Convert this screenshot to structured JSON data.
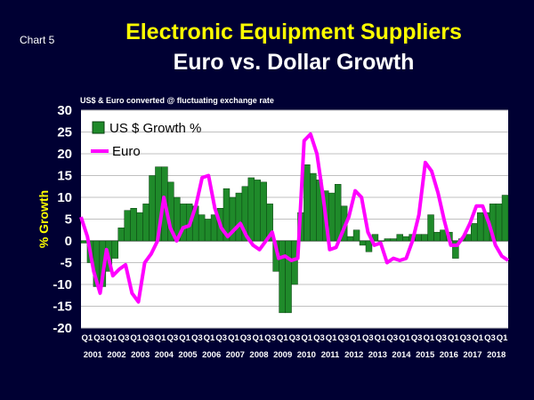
{
  "header": {
    "chart_label": "Chart 5",
    "title": "Electronic Equipment Suppliers",
    "subtitle": "Euro vs. Dollar Growth",
    "note": "US$ & Euro converted @ fluctuating exchange rate"
  },
  "colors": {
    "background": "#000033",
    "plot_background": "#ffffff",
    "bar": "#1f8a2a",
    "euro_line": "#ff00ff",
    "title": "#ffff00",
    "text": "#ffffff"
  },
  "chart_data": {
    "type": "bar",
    "title": "Electronic Equipment Suppliers",
    "subtitle": "Euro vs. Dollar Growth",
    "ylabel": "% Growth",
    "xlabel": "",
    "ylim": [
      -20,
      30
    ],
    "yticks": [
      30,
      25,
      20,
      15,
      10,
      5,
      0,
      -5,
      -10,
      -15,
      -20
    ],
    "grid": true,
    "legend_position": "top-left",
    "quarter_tick_labels": [
      "Q1",
      "Q3",
      "Q1",
      "Q3",
      "Q1",
      "Q3",
      "Q1",
      "Q3",
      "Q1",
      "Q3",
      "Q1",
      "Q3",
      "Q1",
      "Q3",
      "Q1",
      "Q3",
      "Q1",
      "Q3",
      "Q1",
      "Q3",
      "Q1",
      "Q3",
      "Q1",
      "Q3",
      "Q1",
      "Q3",
      "Q1",
      "Q3",
      "Q1",
      "Q3",
      "Q1",
      "Q3",
      "Q1",
      "Q3",
      "Q1"
    ],
    "years": [
      "2001",
      "2002",
      "2003",
      "2004",
      "2005",
      "2006",
      "2007",
      "2008",
      "2009",
      "2010",
      "2011",
      "2012",
      "2013",
      "2014",
      "2015",
      "2016",
      "2017",
      "2018"
    ],
    "series": [
      {
        "name": "US $ Growth %",
        "type": "bar",
        "values": [
          -0.5,
          -5,
          -10.5,
          -10.5,
          -7,
          -4,
          3,
          7,
          7.5,
          6.5,
          8.5,
          15,
          17,
          17,
          13.5,
          10,
          8.5,
          8.5,
          8,
          6,
          5,
          6,
          7.5,
          12,
          10,
          11,
          12.5,
          14.5,
          14,
          13.5,
          8.5,
          -7,
          -16.5,
          -16.5,
          -10,
          6.5,
          17.5,
          15.5,
          14,
          11.5,
          11,
          13,
          8,
          1,
          2.5,
          -1,
          -2.5,
          1.5,
          0,
          0.5,
          0.5,
          1.5,
          1,
          1.5,
          1.5,
          1.5,
          6,
          2,
          2.5,
          2,
          -4,
          0.5,
          1.5,
          4,
          6.5,
          6.5,
          8.5,
          8.5,
          10.5
        ]
      },
      {
        "name": "Euro",
        "type": "line",
        "values": [
          5.5,
          1,
          -7,
          -12,
          -2,
          -8,
          -6.5,
          -5.5,
          -12,
          -14,
          -5,
          -3,
          0,
          10,
          3,
          0,
          3,
          3.5,
          8,
          14.5,
          15,
          7.5,
          3,
          1,
          2.5,
          4,
          1,
          -1,
          -2,
          0,
          2,
          -4,
          -3.5,
          -4.5,
          -4,
          23,
          24.5,
          20,
          10,
          -2,
          -1.5,
          2,
          5.5,
          11.5,
          10,
          2,
          -1,
          -0.5,
          -5,
          -4,
          -4.5,
          -4,
          0,
          6,
          18,
          16,
          11,
          4.5,
          -1,
          -1,
          1,
          4,
          8,
          8,
          4,
          -1,
          -3.5,
          -4.5
        ]
      }
    ]
  }
}
